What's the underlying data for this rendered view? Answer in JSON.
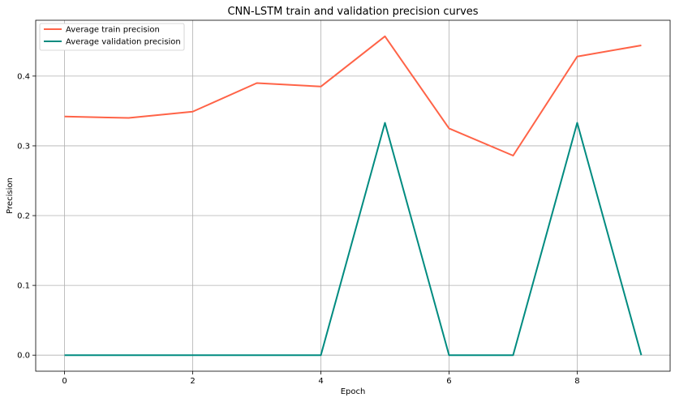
{
  "chart_data": {
    "type": "line",
    "title": "CNN-LSTM train and validation precision curves",
    "xlabel": "Epoch",
    "ylabel": "Precision",
    "x": [
      0,
      1,
      2,
      3,
      4,
      5,
      6,
      7,
      8,
      9
    ],
    "xlim": [
      -0.45,
      9.45
    ],
    "ylim": [
      -0.023,
      0.48
    ],
    "xticks": [
      0,
      2,
      4,
      6,
      8
    ],
    "yticks": [
      0.0,
      0.1,
      0.2,
      0.3,
      0.4
    ],
    "xtick_labels": [
      "0",
      "2",
      "4",
      "6",
      "8"
    ],
    "ytick_labels": [
      "0.0",
      "0.1",
      "0.2",
      "0.3",
      "0.4"
    ],
    "grid": true,
    "legend_position": "upper-left",
    "series": [
      {
        "name": "Average train precision",
        "color": "#ff6347",
        "values": [
          0.342,
          0.34,
          0.349,
          0.39,
          0.385,
          0.457,
          0.325,
          0.286,
          0.428,
          0.444
        ]
      },
      {
        "name": "Average validation precision",
        "color": "#008b80",
        "values": [
          0.0,
          0.0,
          0.0,
          0.0,
          0.0,
          0.333,
          0.0,
          0.0,
          0.333,
          0.0
        ]
      }
    ]
  }
}
